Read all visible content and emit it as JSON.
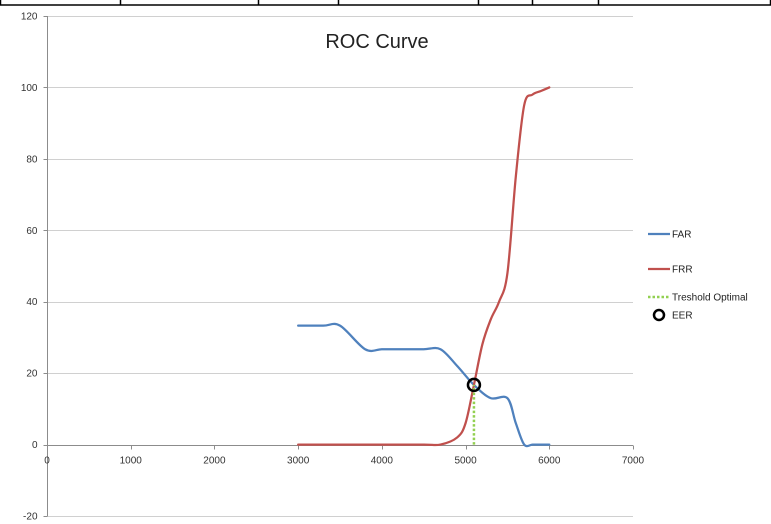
{
  "chart_data": {
    "type": "line",
    "title": "ROC Curve",
    "xlabel": "",
    "ylabel": "",
    "xlim": [
      0,
      7000
    ],
    "ylim": [
      -20,
      120
    ],
    "x_ticks": [
      0,
      1000,
      2000,
      3000,
      4000,
      5000,
      6000,
      7000
    ],
    "y_ticks": [
      -20,
      0,
      20,
      40,
      60,
      80,
      100,
      120
    ],
    "grid": true,
    "legend_position": "right",
    "series": [
      {
        "name": "FAR",
        "color": "#4f81bd",
        "style": "solid",
        "x": [
          3000,
          3300,
          3500,
          3800,
          4000,
          4200,
          4500,
          4700,
          4900,
          5100,
          5300,
          5500,
          5600,
          5700,
          5800,
          5900,
          6000
        ],
        "y": [
          33.3,
          33.3,
          33.3,
          26.7,
          26.7,
          26.7,
          26.7,
          26.7,
          22,
          16.7,
          13,
          13,
          6,
          0,
          0,
          0,
          0
        ]
      },
      {
        "name": "FRR",
        "color": "#c0504d",
        "style": "solid",
        "x": [
          3000,
          3500,
          4000,
          4500,
          4700,
          4900,
          5000,
          5100,
          5200,
          5300,
          5400,
          5500,
          5600,
          5700,
          5800,
          5900,
          6000
        ],
        "y": [
          0,
          0,
          0,
          0,
          0,
          2,
          6,
          16.7,
          28,
          35,
          40,
          48,
          75,
          95,
          98,
          99,
          100
        ]
      },
      {
        "name": "Treshold Optimal",
        "color": "#92d050",
        "style": "dotted",
        "x": [
          5100,
          5100
        ],
        "y": [
          0,
          16.7
        ]
      }
    ],
    "points": [
      {
        "name": "EER",
        "x": 5100,
        "y": 16.7,
        "marker": "circle",
        "color": "#000000"
      }
    ]
  }
}
